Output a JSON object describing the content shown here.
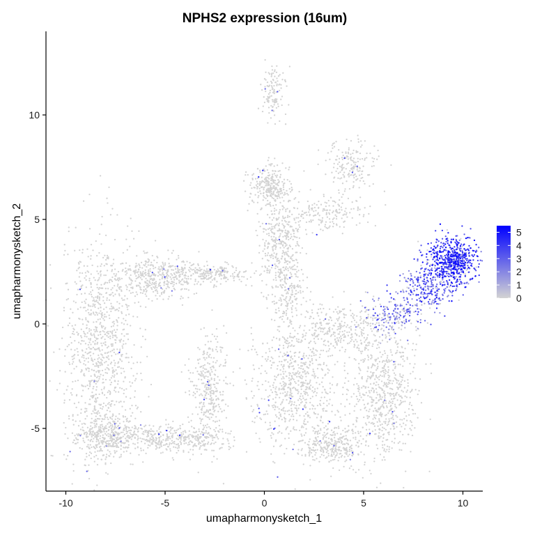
{
  "chart_data": {
    "type": "scatter",
    "title": "NPHS2 expression (16um)",
    "xlabel": "umapharmonysketch_1",
    "ylabel": "umapharmonysketch_2",
    "xlim": [
      -11.0,
      11.0
    ],
    "ylim": [
      -8.0,
      14.0
    ],
    "x_ticks": [
      -10,
      -5,
      0,
      5,
      10
    ],
    "y_ticks": [
      -5,
      0,
      5,
      10
    ],
    "x_tick_labels": [
      "-10",
      "-5",
      "0",
      "5",
      "10"
    ],
    "y_tick_labels": [
      "-5",
      "0",
      "5",
      "10"
    ],
    "grid": false,
    "legend": {
      "placement": "right",
      "type": "colorbar",
      "min": 0,
      "max": 5.5,
      "ticks": [
        0,
        1,
        2,
        3,
        4,
        5
      ],
      "tick_labels": [
        "0",
        "1",
        "2",
        "3",
        "4",
        "5"
      ],
      "low_color": "#d3d3d3",
      "high_color": "#0000ff"
    },
    "clusters": [
      {
        "cx": -8.2,
        "cy": -1.0,
        "sx": 0.9,
        "sy": 2.6,
        "n": 900,
        "expr": 0
      },
      {
        "cx": -8.0,
        "cy": -5.3,
        "sx": 0.9,
        "sy": 0.55,
        "n": 400,
        "expr": 0
      },
      {
        "cx": -5.5,
        "cy": 2.2,
        "sx": 1.2,
        "sy": 0.5,
        "n": 450,
        "expr": 0
      },
      {
        "cx": -5.5,
        "cy": -5.5,
        "sx": 1.3,
        "sy": 0.3,
        "n": 250,
        "expr": 0
      },
      {
        "cx": -2.5,
        "cy": 2.4,
        "sx": 1.0,
        "sy": 0.25,
        "n": 200,
        "expr": 0
      },
      {
        "cx": -2.8,
        "cy": -3.2,
        "sx": 0.45,
        "sy": 1.3,
        "n": 350,
        "expr": 0
      },
      {
        "cx": -3.5,
        "cy": -5.5,
        "sx": 1.0,
        "sy": 0.3,
        "n": 150,
        "expr": 0
      },
      {
        "cx": 0.3,
        "cy": 6.6,
        "sx": 0.5,
        "sy": 0.5,
        "n": 280,
        "expr": 0
      },
      {
        "cx": 0.8,
        "cy": 3.8,
        "sx": 0.55,
        "sy": 1.0,
        "n": 350,
        "expr": 0
      },
      {
        "cx": 1.2,
        "cy": 1.5,
        "sx": 0.4,
        "sy": 0.8,
        "n": 150,
        "expr": 0
      },
      {
        "cx": 0.5,
        "cy": 11.2,
        "sx": 0.3,
        "sy": 0.6,
        "n": 120,
        "expr": 0
      },
      {
        "cx": 4.4,
        "cy": 7.5,
        "sx": 0.6,
        "sy": 0.6,
        "n": 180,
        "expr": 0
      },
      {
        "cx": 3.0,
        "cy": 5.3,
        "sx": 1.2,
        "sy": 0.4,
        "n": 180,
        "expr": 0
      },
      {
        "cx": 1.5,
        "cy": -3.0,
        "sx": 1.1,
        "sy": 1.5,
        "n": 700,
        "expr": 0
      },
      {
        "cx": 3.5,
        "cy": -5.8,
        "sx": 0.8,
        "sy": 0.5,
        "n": 300,
        "expr": 0
      },
      {
        "cx": 3.8,
        "cy": -0.2,
        "sx": 1.2,
        "sy": 0.55,
        "n": 320,
        "expr": 0
      },
      {
        "cx": 6.0,
        "cy": -3.3,
        "sx": 0.85,
        "sy": 1.6,
        "n": 650,
        "expr": 0
      },
      {
        "cx": 9.5,
        "cy": 3.0,
        "sx": 0.65,
        "sy": 0.55,
        "n": 650,
        "expr": 4.0
      },
      {
        "cx": 8.2,
        "cy": 1.7,
        "sx": 0.75,
        "sy": 0.5,
        "n": 260,
        "expr": 3.0
      },
      {
        "cx": 6.5,
        "cy": 0.4,
        "sx": 0.75,
        "sy": 0.45,
        "n": 170,
        "expr": 2.2
      }
    ]
  }
}
